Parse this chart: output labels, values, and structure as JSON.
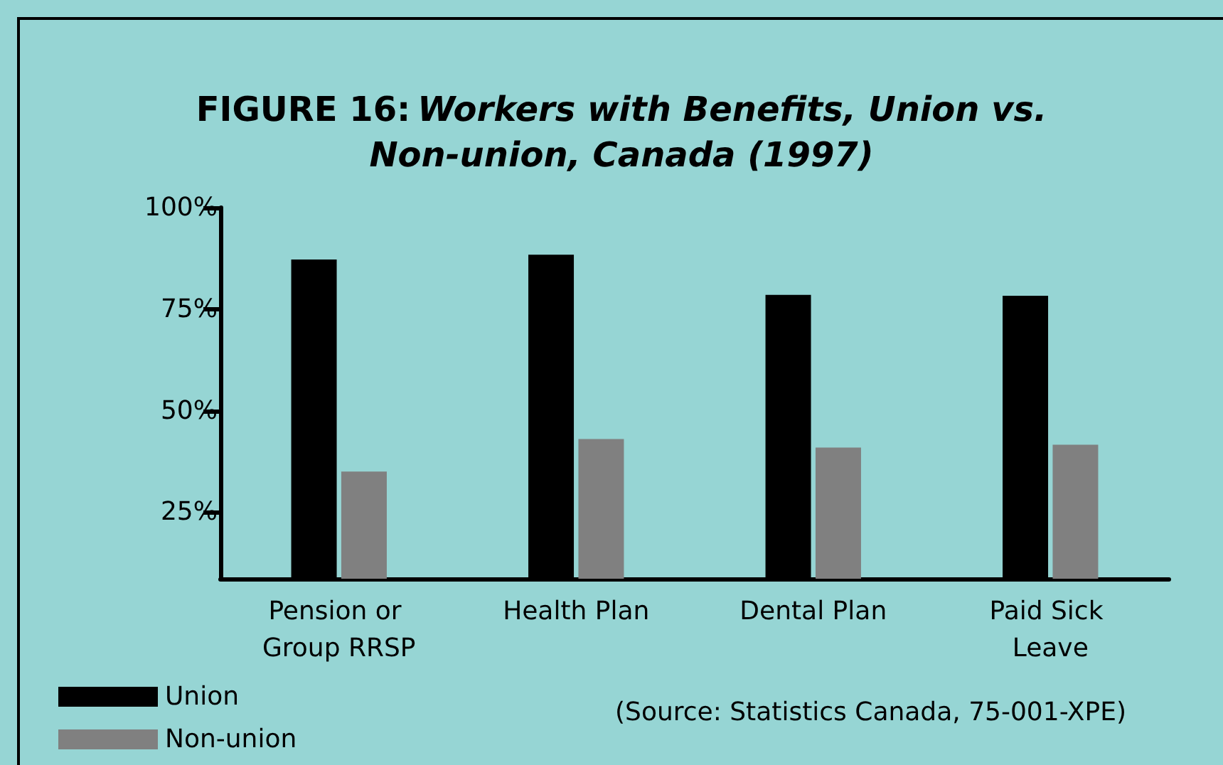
{
  "chart_data": {
    "type": "bar",
    "title": "FIGURE 16: Workers with Benefits, Union vs. Non-union, Canada (1997)",
    "categories": [
      "Pension or Group RRSP",
      "Health Plan",
      "Dental Plan",
      "Paid Sick Leave"
    ],
    "series": [
      {
        "name": "Union",
        "color": "#000000",
        "values": [
          87.2,
          88.4,
          78.5,
          78.3
        ]
      },
      {
        "name": "Non-union",
        "color": "#808080",
        "values": [
          35.0,
          43.0,
          40.9,
          41.6
        ]
      }
    ],
    "ylim": [
      8.6,
      100
    ],
    "yticks": [
      {
        "value": 25,
        "label": "25%"
      },
      {
        "value": 50,
        "label": "50%"
      },
      {
        "value": 75,
        "label": "75%"
      },
      {
        "value": 100,
        "label": "100%"
      }
    ],
    "grid": false,
    "legend": "bottom left",
    "annotations": [
      "(Source: Statistics Canada, 75-001-XPE)"
    ]
  }
}
